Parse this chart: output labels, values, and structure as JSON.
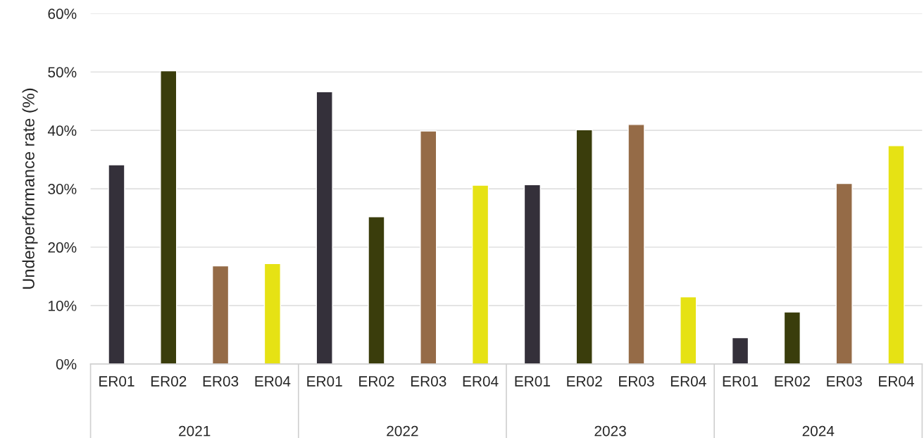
{
  "chart_data": {
    "type": "bar",
    "ylabel": "Underperformance rate (%)",
    "categories": [
      "ER01",
      "ER02",
      "ER03",
      "ER04",
      "ER01",
      "ER02",
      "ER03",
      "ER04",
      "ER01",
      "ER02",
      "ER03",
      "ER04",
      "ER01",
      "ER02",
      "ER03",
      "ER04"
    ],
    "values": [
      34.1,
      50.2,
      16.8,
      17.2,
      46.6,
      25.2,
      39.9,
      30.6,
      30.7,
      40.1,
      41.0,
      11.5,
      4.5,
      8.9,
      30.9,
      37.4
    ],
    "colors": [
      "#34303a",
      "#3a3d0c",
      "#956b47",
      "#e6e214",
      "#34303a",
      "#3a3d0c",
      "#956b47",
      "#e6e214",
      "#34303a",
      "#3a3d0c",
      "#956b47",
      "#e6e214",
      "#34303a",
      "#3a3d0c",
      "#956b47",
      "#e6e214"
    ],
    "annotations": [
      "2021",
      "2022",
      "2023",
      "2024"
    ],
    "ylim": [
      0,
      60
    ],
    "yticks": [
      {
        "value": 0,
        "label": "0%"
      },
      {
        "value": 10,
        "label": "10%"
      },
      {
        "value": 20,
        "label": "20%"
      },
      {
        "value": 30,
        "label": "30%"
      },
      {
        "value": 40,
        "label": "40%"
      },
      {
        "value": 50,
        "label": "50%"
      },
      {
        "value": 60,
        "label": "60%"
      }
    ],
    "grid": "y",
    "legend": false
  }
}
